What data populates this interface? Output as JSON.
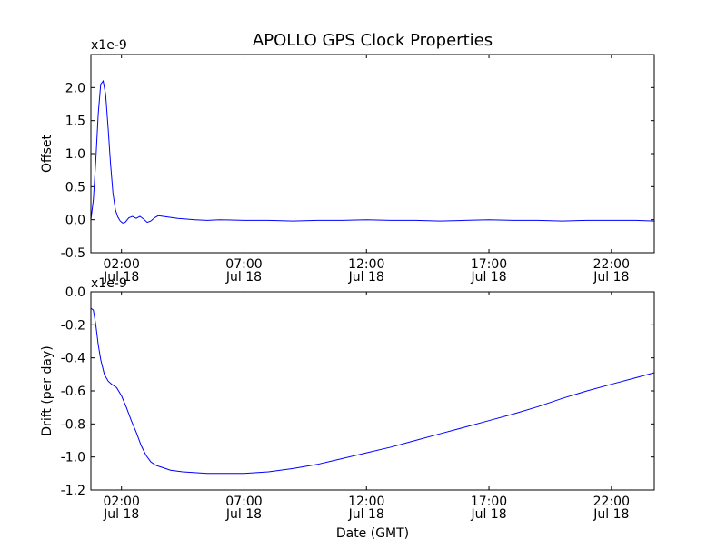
{
  "chart_data": [
    {
      "type": "line",
      "title": "APOLLO GPS Clock Properties",
      "ylabel": "Offset",
      "xlabel": "",
      "scale_label": "x1e-9",
      "ylim": [
        -0.5,
        2.5
      ],
      "yticks": [
        -0.5,
        0.0,
        0.5,
        1.0,
        1.5,
        2.0
      ],
      "ytick_labels": [
        "-0.5",
        "0.0",
        "0.5",
        "1.0",
        "1.5",
        "2.0"
      ],
      "xlim_hours": [
        0.75,
        23.75
      ],
      "xticks_hours": [
        2,
        7,
        12,
        17,
        22
      ],
      "xtick_time_labels": [
        "02:00",
        "07:00",
        "12:00",
        "17:00",
        "22:00"
      ],
      "xtick_date_labels": [
        "Jul 18",
        "Jul 18",
        "Jul 18",
        "Jul 18",
        "Jul 18"
      ],
      "line_color": "#0000ff",
      "series": [
        {
          "name": "offset",
          "x_hours": [
            0.75,
            0.85,
            0.95,
            1.05,
            1.15,
            1.25,
            1.35,
            1.45,
            1.55,
            1.65,
            1.75,
            1.85,
            1.95,
            2.05,
            2.15,
            2.3,
            2.45,
            2.6,
            2.75,
            2.9,
            3.05,
            3.2,
            3.35,
            3.5,
            3.7,
            3.9,
            4.1,
            4.3,
            4.6,
            5.0,
            5.5,
            6.0,
            7.0,
            8.0,
            9.0,
            10.0,
            11.0,
            12.0,
            13.0,
            14.0,
            15.0,
            16.0,
            17.0,
            18.0,
            19.0,
            20.0,
            21.0,
            22.0,
            23.0,
            23.75
          ],
          "values": [
            0.0,
            0.3,
            0.9,
            1.6,
            2.05,
            2.1,
            1.9,
            1.4,
            0.85,
            0.4,
            0.15,
            0.04,
            -0.02,
            -0.05,
            -0.04,
            0.03,
            0.05,
            0.02,
            0.05,
            0.01,
            -0.04,
            -0.02,
            0.03,
            0.06,
            0.05,
            0.04,
            0.03,
            0.02,
            0.01,
            0.0,
            -0.01,
            0.0,
            -0.01,
            -0.01,
            -0.02,
            -0.01,
            -0.01,
            0.0,
            -0.01,
            -0.01,
            -0.02,
            -0.01,
            0.0,
            -0.01,
            -0.01,
            -0.02,
            -0.01,
            -0.01,
            -0.01,
            -0.02
          ]
        }
      ]
    },
    {
      "type": "line",
      "title": "",
      "ylabel": "Drift (per day)",
      "xlabel": "Date (GMT)",
      "scale_label": "x1e-9",
      "ylim": [
        -1.2,
        0.0
      ],
      "yticks": [
        -1.2,
        -1.0,
        -0.8,
        -0.6,
        -0.4,
        -0.2,
        0.0
      ],
      "ytick_labels": [
        "-1.2",
        "-1.0",
        "-0.8",
        "-0.6",
        "-0.4",
        "-0.2",
        "0.0"
      ],
      "xlim_hours": [
        0.75,
        23.75
      ],
      "xticks_hours": [
        2,
        7,
        12,
        17,
        22
      ],
      "xtick_time_labels": [
        "02:00",
        "07:00",
        "12:00",
        "17:00",
        "22:00"
      ],
      "xtick_date_labels": [
        "Jul 18",
        "Jul 18",
        "Jul 18",
        "Jul 18",
        "Jul 18"
      ],
      "line_color": "#0000ff",
      "series": [
        {
          "name": "drift",
          "x_hours": [
            0.75,
            0.85,
            0.95,
            1.05,
            1.15,
            1.3,
            1.45,
            1.6,
            1.8,
            2.0,
            2.2,
            2.4,
            2.6,
            2.8,
            3.0,
            3.2,
            3.4,
            3.6,
            3.8,
            4.0,
            4.5,
            5.0,
            5.5,
            6.0,
            6.5,
            7.0,
            7.5,
            8.0,
            9.0,
            10.0,
            11.0,
            12.0,
            13.0,
            14.0,
            15.0,
            16.0,
            17.0,
            18.0,
            19.0,
            20.0,
            21.0,
            22.0,
            23.0,
            23.75
          ],
          "values": [
            -0.1,
            -0.11,
            -0.2,
            -0.32,
            -0.41,
            -0.5,
            -0.54,
            -0.56,
            -0.58,
            -0.63,
            -0.7,
            -0.78,
            -0.85,
            -0.93,
            -0.99,
            -1.03,
            -1.05,
            -1.06,
            -1.07,
            -1.08,
            -1.09,
            -1.095,
            -1.1,
            -1.1,
            -1.1,
            -1.1,
            -1.095,
            -1.09,
            -1.07,
            -1.045,
            -1.01,
            -0.975,
            -0.94,
            -0.9,
            -0.86,
            -0.82,
            -0.78,
            -0.74,
            -0.695,
            -0.645,
            -0.6,
            -0.56,
            -0.52,
            -0.49
          ]
        }
      ]
    }
  ]
}
